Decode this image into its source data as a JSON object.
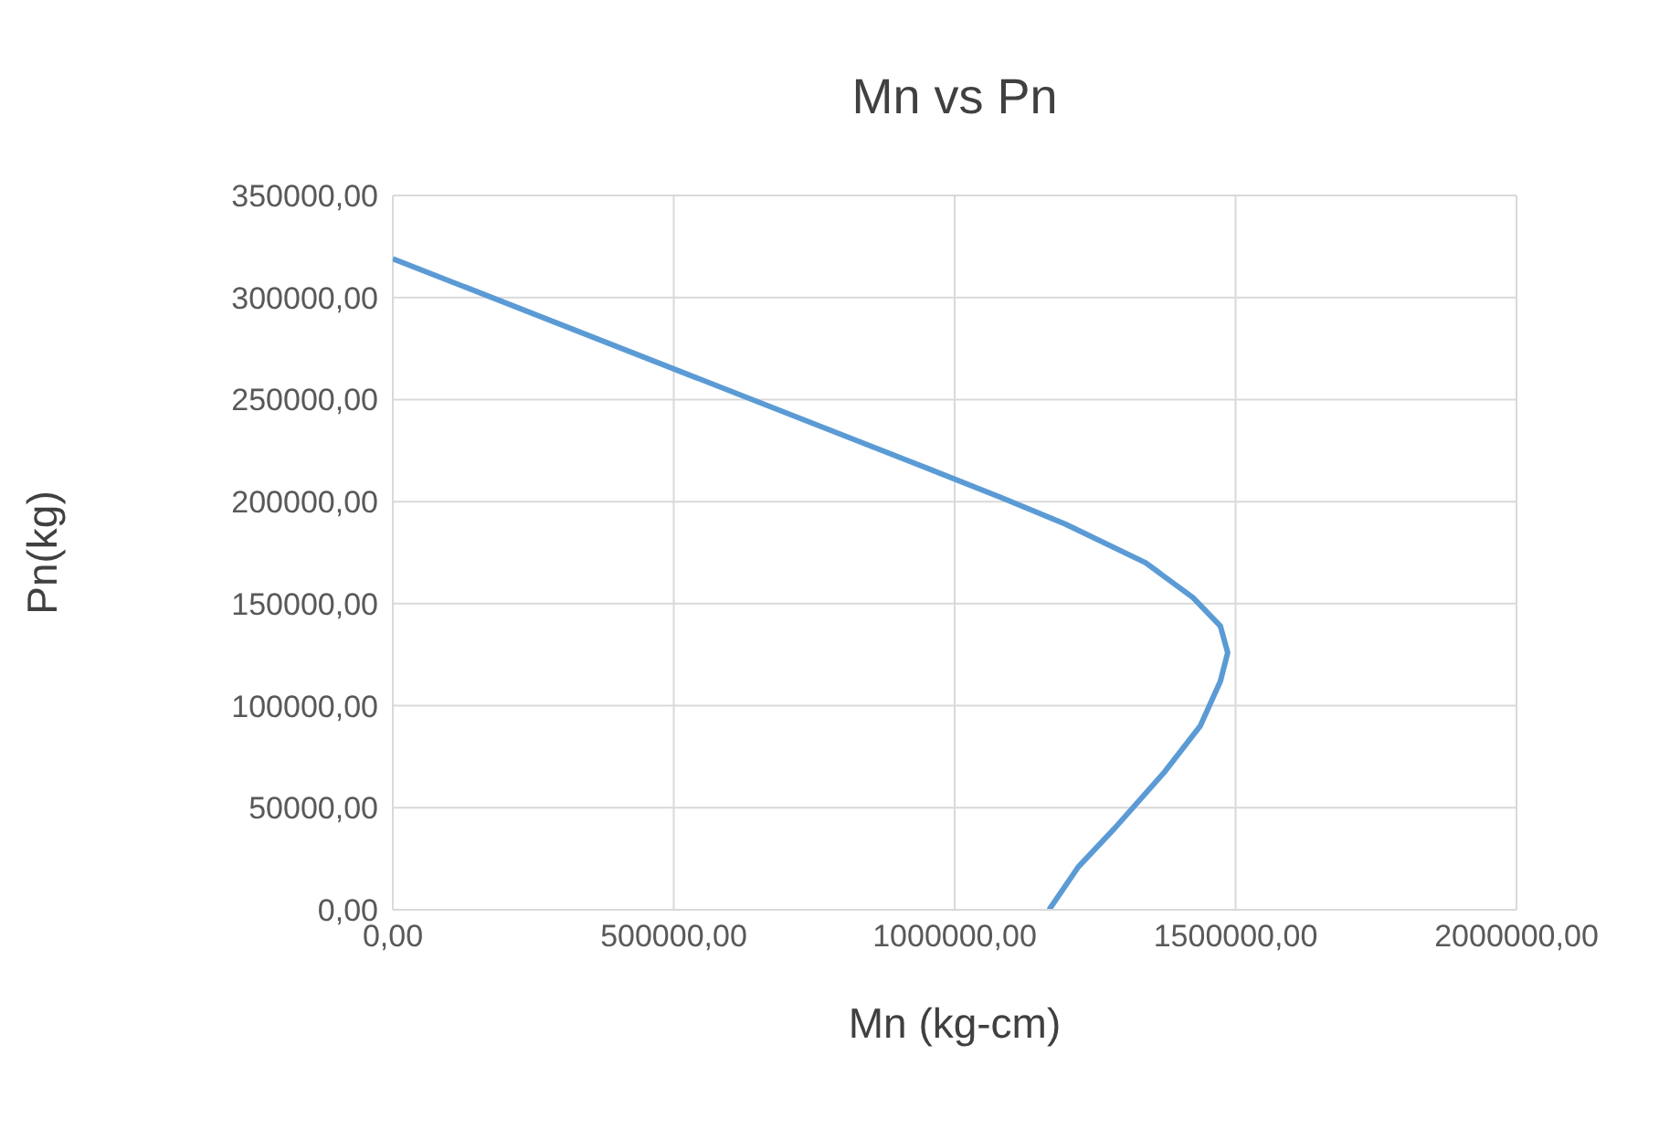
{
  "chart_data": {
    "type": "line",
    "title": "Mn vs Pn",
    "xlabel": "Mn (kg-cm)",
    "ylabel": "Pn(kg)",
    "x": [
      0,
      927000,
      1083000,
      1197000,
      1340000,
      1424000,
      1473000,
      1486000,
      1473000,
      1437000,
      1372000,
      1285000,
      1220000,
      1168000
    ],
    "series": [
      {
        "color": "#5b9bd5",
        "values": [
          319000,
          219000,
          202000,
          189000,
          170000,
          153000,
          139000,
          126000,
          112000,
          90000,
          67000,
          40000,
          21000,
          0
        ]
      }
    ],
    "xlim": [
      0,
      2000000
    ],
    "xticks": [
      {
        "value": 0,
        "label": "0,00"
      },
      {
        "value": 500000,
        "label": "500000,00"
      },
      {
        "value": 1000000,
        "label": "1000000,00"
      },
      {
        "value": 1500000,
        "label": "1500000,00"
      },
      {
        "value": 2000000,
        "label": "2000000,00"
      }
    ],
    "ylim": [
      0,
      350000
    ],
    "yticks": [
      {
        "value": 0,
        "label": "0,00"
      },
      {
        "value": 50000,
        "label": "50000,00"
      },
      {
        "value": 100000,
        "label": "100000,00"
      },
      {
        "value": 150000,
        "label": "150000,00"
      },
      {
        "value": 200000,
        "label": "200000,00"
      },
      {
        "value": 250000,
        "label": "250000,00"
      },
      {
        "value": 300000,
        "label": "300000,00"
      },
      {
        "value": 350000,
        "label": "350000,00"
      }
    ],
    "grid": true,
    "marker": "none",
    "line_style": "solid"
  }
}
